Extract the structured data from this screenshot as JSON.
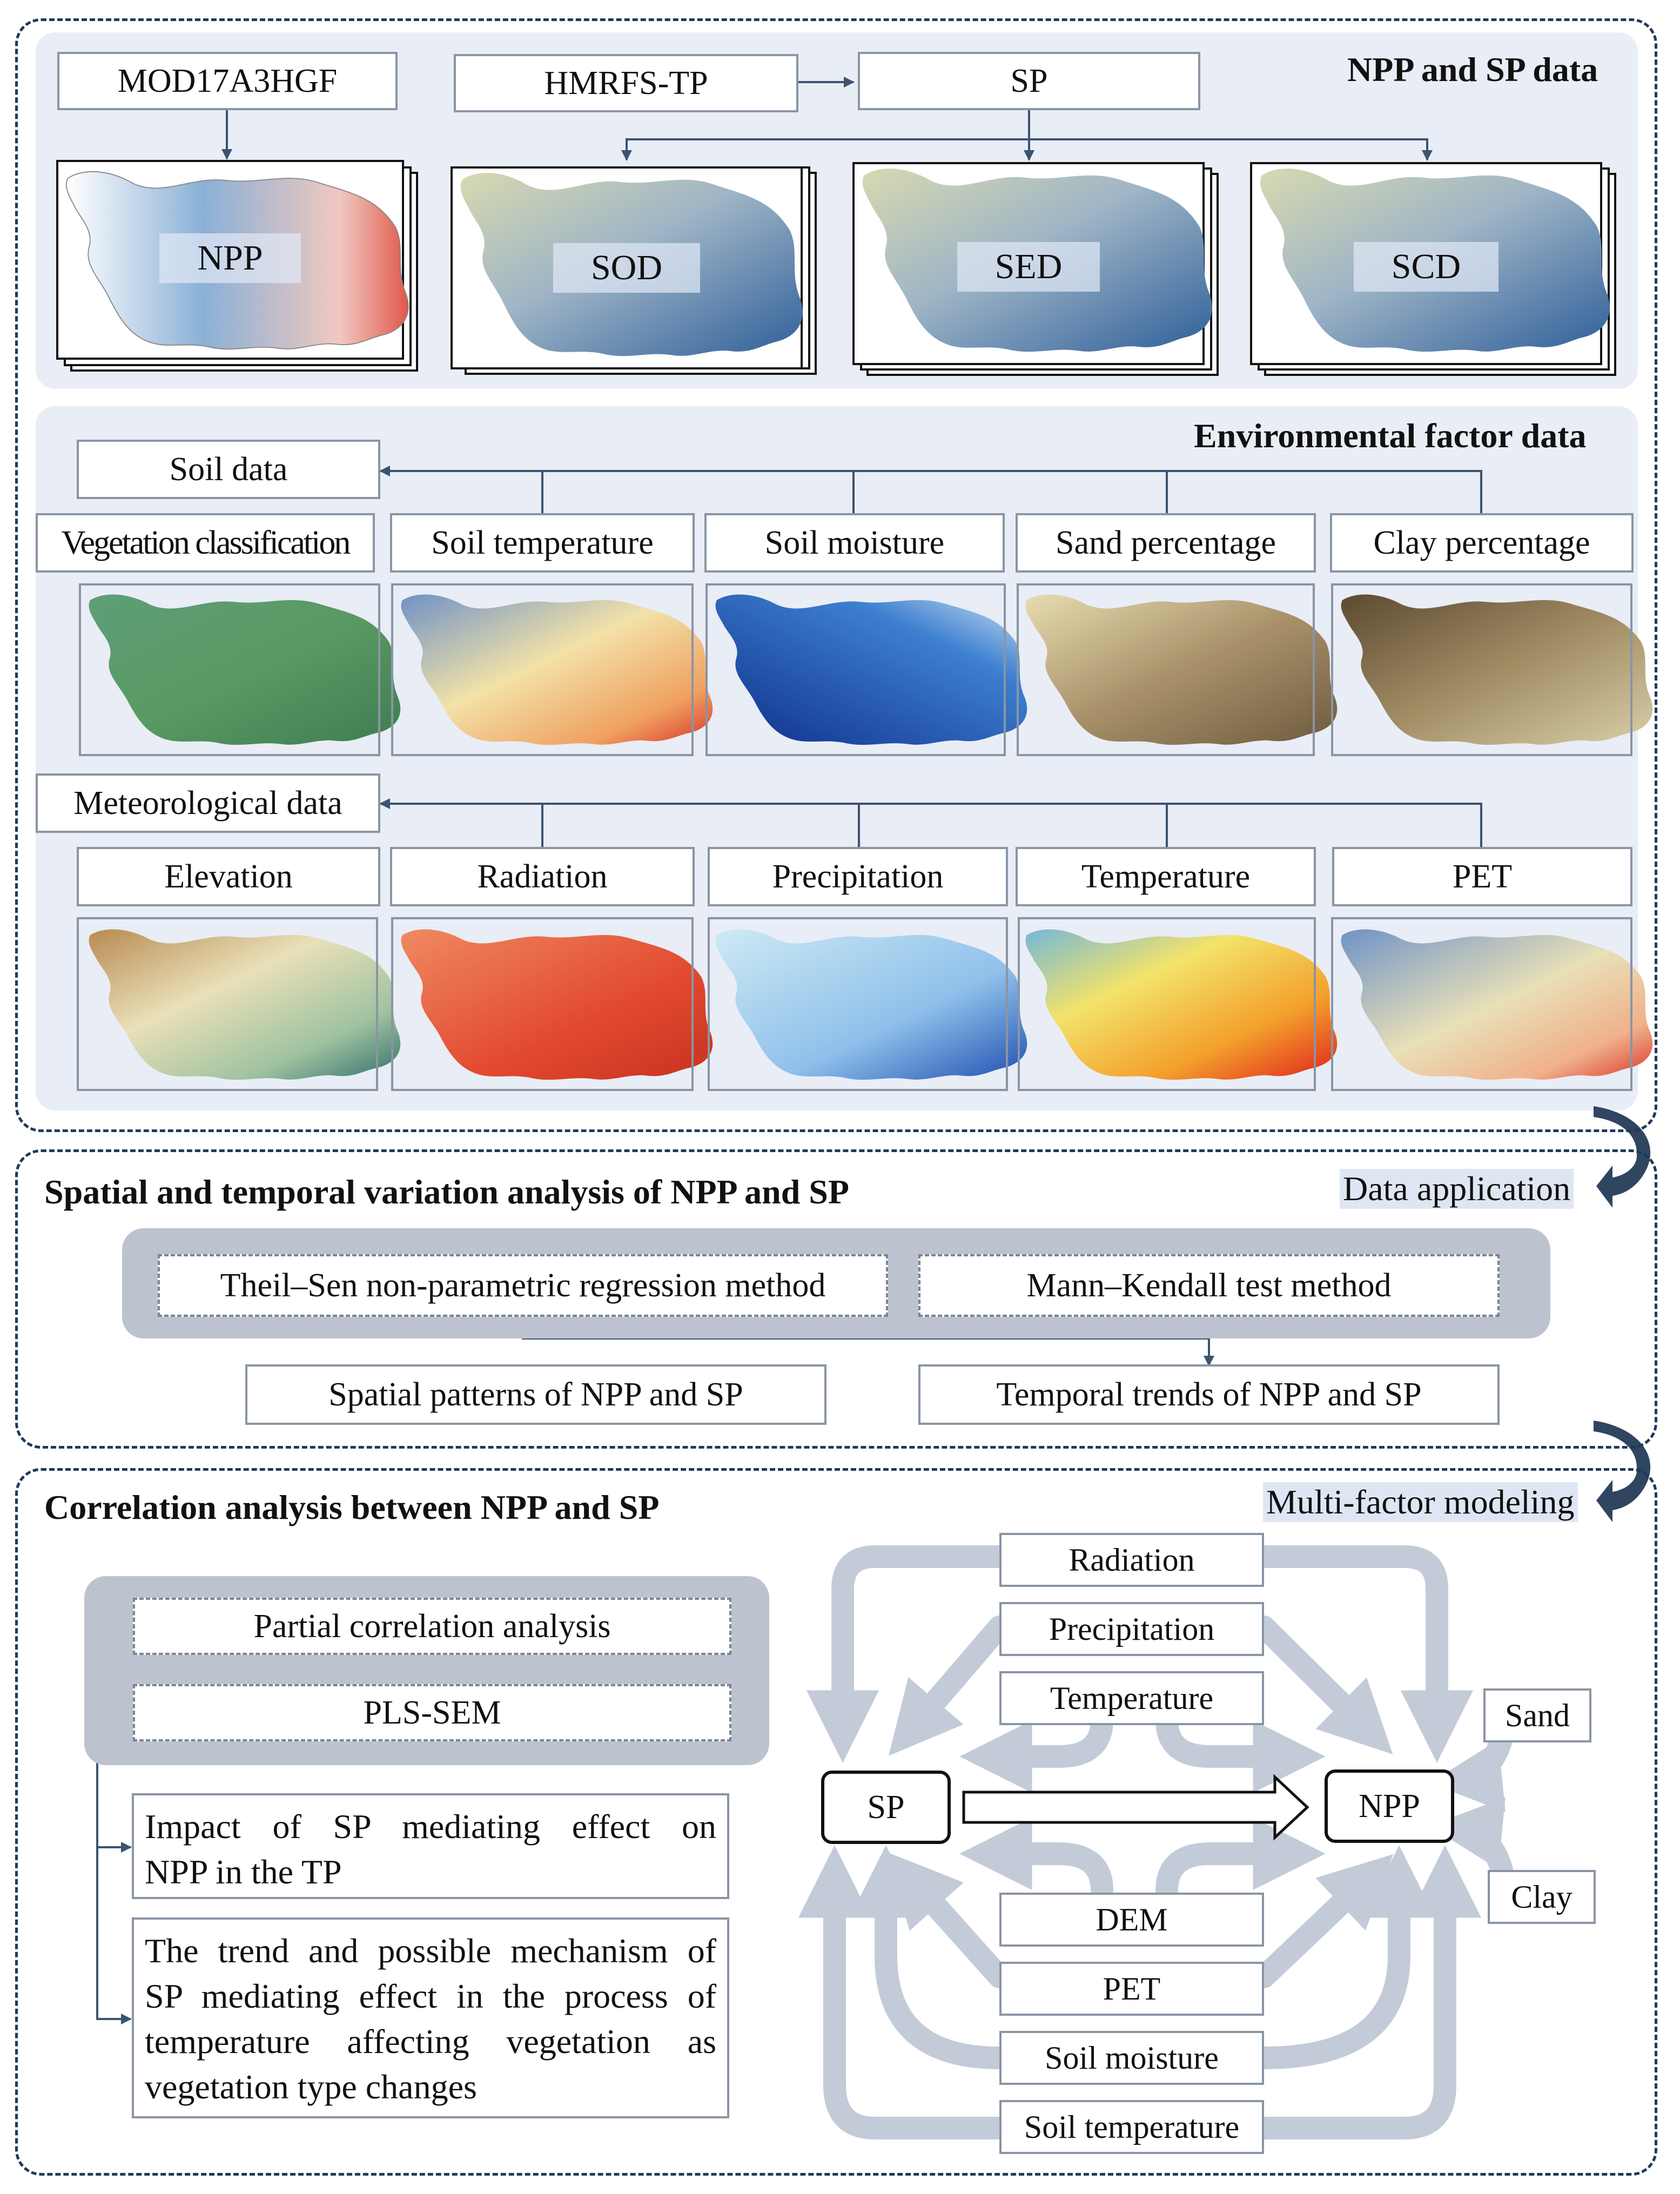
{
  "section1": {
    "title": "NPP and SP data",
    "sources": {
      "mod17": "MOD17A3HGF",
      "hmrfs": "HMRFS-TP",
      "sp": "SP"
    },
    "maps": {
      "npp": "NPP",
      "sod": "SOD",
      "sed": "SED",
      "scd": "SCD"
    }
  },
  "section2": {
    "title": "Environmental factor data",
    "soil_group": "Soil data",
    "soil_items": [
      "Vegetation classification",
      "Soil temperature",
      "Soil moisture",
      "Sand percentage",
      "Clay percentage"
    ],
    "met_group": "Meteorological data",
    "met_items": [
      "Elevation",
      "Radiation",
      "Precipitation",
      "Temperature",
      "PET"
    ]
  },
  "section3": {
    "tag": "Data application",
    "title": "Spatial and temporal variation analysis of NPP and SP",
    "method1": "Theil–Sen non-parametric regression method",
    "method2": "Mann–Kendall test method",
    "result1": "Spatial patterns of NPP and SP",
    "result2": "Temporal trends of NPP and SP"
  },
  "section4": {
    "tag": "Multi-factor modeling",
    "title": "Correlation analysis between NPP and SP",
    "method1": "Partial correlation analysis",
    "method2": "PLS-SEM",
    "finding1_lines": [
      "Impact of SP mediating effect on",
      "NPP in the TP"
    ],
    "finding2_lines": [
      "The trend and possible mechanism of",
      "SP mediating effect in the process of",
      "temperature affecting vegetation as",
      "vegetation type changes"
    ],
    "model": {
      "sp": "SP",
      "npp": "NPP",
      "top_factors": [
        "Radiation",
        "Precipitation",
        "Temperature"
      ],
      "bottom_factors": [
        "DEM",
        "PET",
        "Soil moisture",
        "Soil temperature"
      ],
      "side_factors": [
        "Sand",
        "Clay"
      ]
    }
  },
  "colors": {
    "frame": "#1f3a5a",
    "panel": "#e9edf6",
    "connector": "#3c5470",
    "model_arrow": "#c3cbd8",
    "box_border": "#8a95a4"
  }
}
